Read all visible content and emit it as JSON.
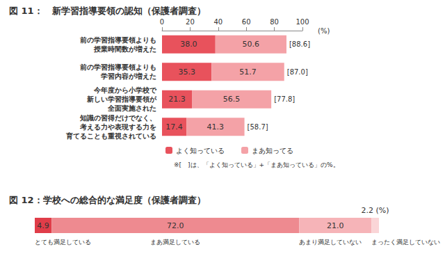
{
  "chart_data": [
    {
      "type": "bar",
      "title": "図 11：　新学習指導要領の認知（保護者調査）",
      "orientation": "horizontal",
      "stacked": true,
      "data_labels": true,
      "grid": false,
      "legend": "bottom",
      "xlabel": "(%)",
      "xlim": [
        0,
        100
      ],
      "xticks": [
        0,
        20,
        40,
        60,
        80,
        100
      ],
      "categories": [
        "前の学習指導要領よりも\n授業時間数が増えた",
        "前の学習指導要領よりも\n学習内容が増えた",
        "今年度から小学校で\n新しい学習指導要領が\n全面実施された",
        "知識の習得だけでなく、\n考える力や表現する力を\n育てることも重視されている"
      ],
      "series": [
        {
          "name": "よく知っている",
          "color": "#e8525c",
          "values": [
            38.0,
            35.3,
            21.3,
            17.4
          ],
          "value_labels": [
            "38.0",
            "35.3",
            "21.3",
            "17.4"
          ]
        },
        {
          "name": "まあ知ってる",
          "color": "#f4a2a7",
          "values": [
            50.6,
            51.7,
            56.5,
            41.3
          ],
          "value_labels": [
            "50.6",
            "51.7",
            "56.5",
            "41.3"
          ]
        }
      ],
      "totals": [
        88.6,
        87.0,
        77.8,
        58.7
      ],
      "total_labels": [
        "[88.6]",
        "[87.0]",
        "[77.8]",
        "[58.7]"
      ],
      "note": "※[　]は、「よく知っている」+「まあ知っている」の%。"
    },
    {
      "type": "bar",
      "title": "図 12：学校への総合的な満足度（保護者調査）",
      "orientation": "horizontal",
      "stacked": true,
      "data_labels": true,
      "tick_labels": false,
      "annotation": "(%)",
      "xlim": [
        0,
        100.1
      ],
      "categories": [
        null
      ],
      "series": [
        {
          "name": "とても満足している",
          "color": "#e03d49",
          "values": [
            4.9
          ],
          "value_labels": [
            "4.9"
          ]
        },
        {
          "name": "まあ満足している",
          "color": "#ee8a90",
          "values": [
            72.0
          ],
          "value_labels": [
            "72.0"
          ]
        },
        {
          "name": "あまり満足していない",
          "color": "#f6b4b8",
          "values": [
            21.0
          ],
          "value_labels": [
            "21.0"
          ]
        },
        {
          "name": "まったく満足していない",
          "color": "#fad5d7",
          "values": [
            2.2
          ],
          "value_labels": [
            "2.2"
          ]
        }
      ]
    }
  ]
}
